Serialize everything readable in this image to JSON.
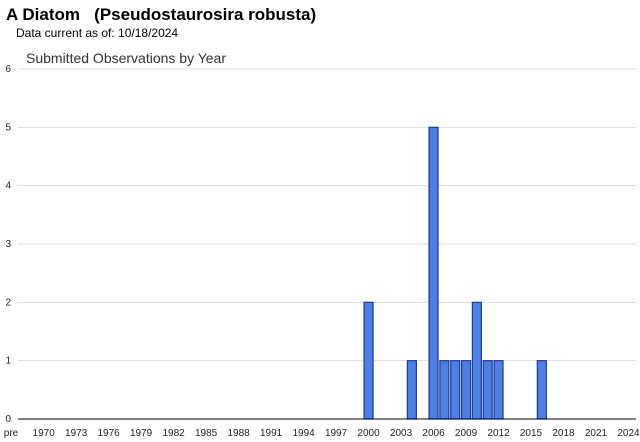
{
  "header": {
    "title": "A Diatom   (Pseudostaurosira robusta)",
    "data_current": "Data current as of: 10/18/2024"
  },
  "chart_data": {
    "type": "bar",
    "title": "Submitted Observations by Year",
    "xlabel": "",
    "ylabel": "",
    "ylim": [
      0,
      6
    ],
    "yticks": [
      0,
      1,
      2,
      3,
      4,
      5,
      6
    ],
    "x_tick_labels": [
      "pre",
      "1970",
      "1973",
      "1976",
      "1979",
      "1982",
      "1985",
      "1988",
      "1991",
      "1994",
      "1997",
      "2000",
      "2003",
      "2006",
      "2009",
      "2012",
      "2015",
      "2018",
      "2021",
      "2024"
    ],
    "categories": [
      "2000",
      "2004",
      "2006",
      "2007",
      "2008",
      "2009",
      "2010",
      "2011",
      "2012",
      "2016"
    ],
    "values": [
      2,
      1,
      5,
      1,
      1,
      1,
      2,
      1,
      1,
      1
    ],
    "grid": true,
    "colors": {
      "bar_fill": "#4f7fe0",
      "bar_stroke": "#1a3a99",
      "grid": "#dddddd",
      "axis": "#000000"
    }
  }
}
